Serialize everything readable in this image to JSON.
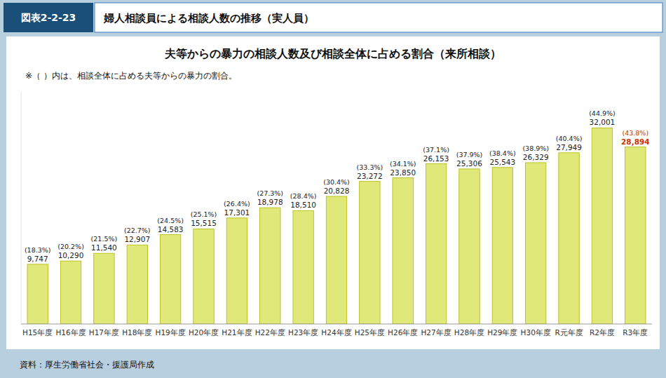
{
  "chart_data": {
    "type": "bar",
    "title": "夫等からの暴力の相談人数及び相談全体に占める割合（来所相談）",
    "subtitle": "婦人相談員による相談人数の推移（実人員）",
    "annotations": [
      "図表2-2-23",
      "※（ ）内は、相談全体に占める夫等からの暴力の割合。",
      "資料：厚生労働省社会・援護局作成"
    ],
    "categories": [
      "H15年度",
      "H16年度",
      "H17年度",
      "H18年度",
      "H19年度",
      "H20年度",
      "H21年度",
      "H22年度",
      "H23年度",
      "H24年度",
      "H25年度",
      "H26年度",
      "H27年度",
      "H28年度",
      "H29年度",
      "H30年度",
      "R元年度",
      "R2年度",
      "R3年度"
    ],
    "values": [
      9747,
      10290,
      11540,
      12907,
      14583,
      15515,
      17301,
      18978,
      18510,
      20828,
      23272,
      23850,
      26153,
      25306,
      25543,
      26329,
      27949,
      32001,
      28894
    ],
    "value_labels": [
      "9,747",
      "10,290",
      "11,540",
      "12,907",
      "14,583",
      "15,515",
      "17,301",
      "18,978",
      "18,510",
      "20,828",
      "23,272",
      "23,850",
      "26,153",
      "25,306",
      "25,543",
      "26,329",
      "27,949",
      "32,001",
      "28,894"
    ],
    "shares": [
      18.3,
      20.2,
      21.5,
      22.7,
      24.5,
      25.1,
      26.4,
      27.3,
      28.4,
      30.4,
      33.3,
      34.1,
      37.1,
      37.9,
      38.4,
      38.9,
      40.4,
      44.9,
      43.8
    ],
    "share_labels": [
      "(18.3%)",
      "(20.2%)",
      "(21.5%)",
      "(22.7%)",
      "(24.5%)",
      "(25.1%)",
      "(26.4%)",
      "(27.3%)",
      "(28.4%)",
      "(30.4%)",
      "(33.3%)",
      "(34.1%)",
      "(37.1%)",
      "(37.9%)",
      "(38.4%)",
      "(38.9%)",
      "(40.4%)",
      "(44.9%)",
      "(43.8%)"
    ],
    "color": "#e0e87a",
    "ylim": [
      0,
      38000
    ],
    "grid": false,
    "data_labels": true,
    "tick_labels": "x"
  }
}
